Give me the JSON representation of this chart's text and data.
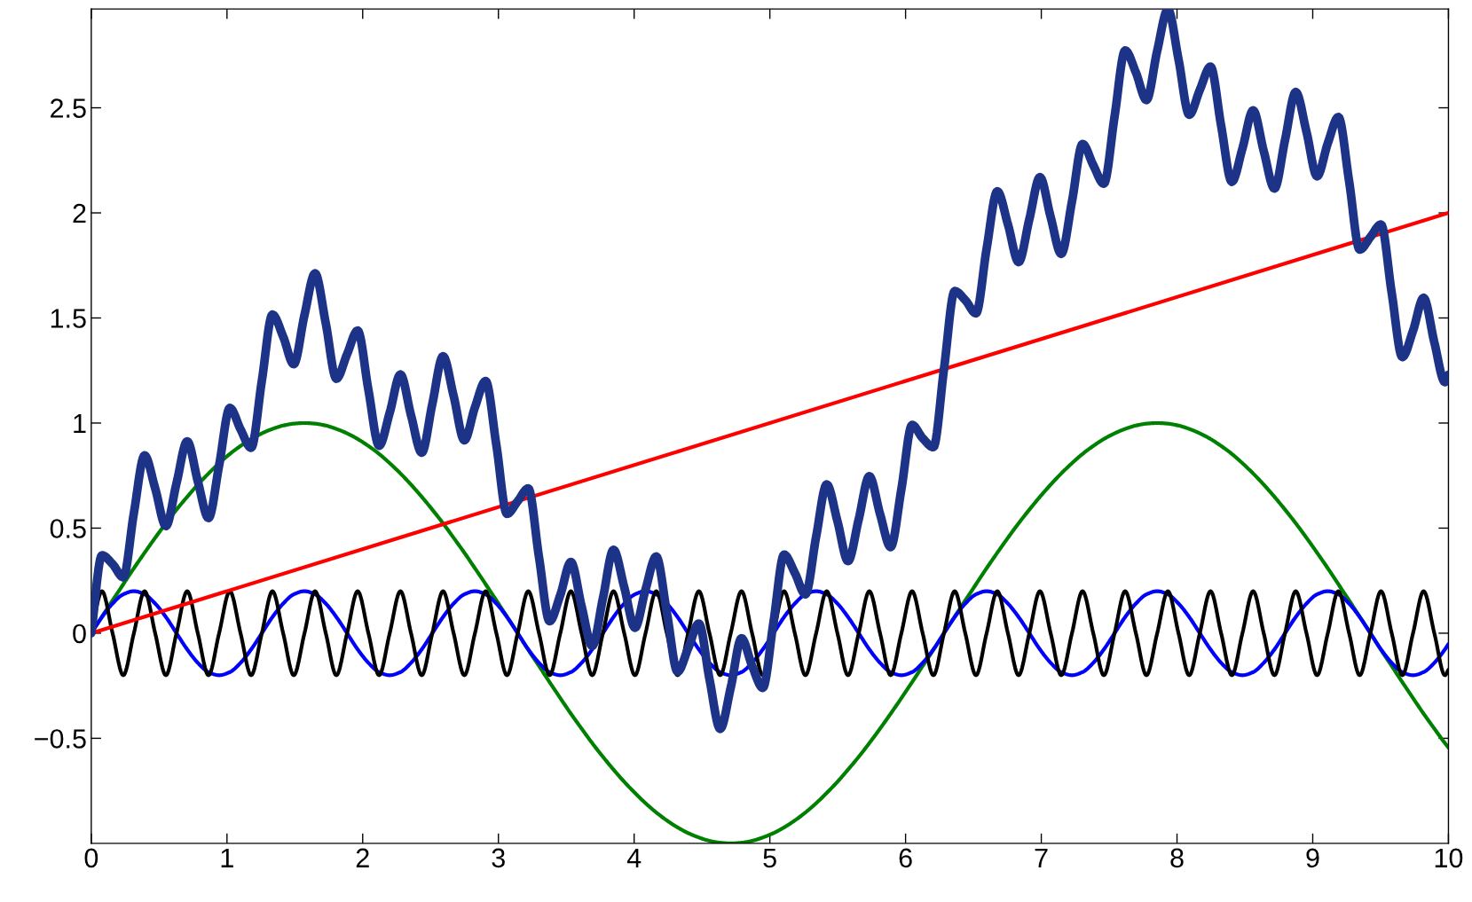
{
  "chart_data": {
    "type": "line",
    "x": [
      0,
      0.079,
      0.157,
      0.236,
      0.314,
      0.393,
      0.471,
      0.55,
      0.628,
      0.707,
      0.785,
      0.864,
      0.942,
      1.021,
      1.1,
      1.178,
      1.257,
      1.335,
      1.414,
      1.492,
      1.571,
      1.649,
      1.728,
      1.806,
      1.885,
      1.963,
      2.042,
      2.121,
      2.199,
      2.278,
      2.356,
      2.435,
      2.513,
      2.592,
      2.67,
      2.749,
      2.827,
      2.906,
      2.985,
      3.063,
      3.142,
      3.22,
      3.299,
      3.377,
      3.456,
      3.534,
      3.613,
      3.691,
      3.77,
      3.848,
      3.927,
      4.006,
      4.084,
      4.163,
      4.241,
      4.32,
      4.398,
      4.477,
      4.555,
      4.634,
      4.712,
      4.791,
      4.869,
      4.948,
      5.027,
      5.105,
      5.184,
      5.262,
      5.341,
      5.419,
      5.498,
      5.576,
      5.655,
      5.733,
      5.812,
      5.89,
      5.969,
      6.048,
      6.126,
      6.205,
      6.283,
      6.362,
      6.44,
      6.519,
      6.597,
      6.676,
      6.754,
      6.833,
      6.912,
      6.99,
      7.069,
      7.147,
      7.226,
      7.304,
      7.383,
      7.461,
      7.54,
      7.618,
      7.697,
      7.775,
      7.854,
      7.933,
      8.011,
      8.09,
      8.168,
      8.247,
      8.325,
      8.404,
      8.482,
      8.561,
      8.639,
      8.718,
      8.796,
      8.875,
      8.954,
      9.032,
      9.111,
      9.189,
      9.268,
      9.346,
      9.425,
      9.503,
      9.582,
      9.66,
      9.739,
      9.817,
      9.896,
      9.974,
      10
    ],
    "series": [
      {
        "color": "#008000",
        "values": [
          0,
          0.079,
          0.156,
          0.233,
          0.309,
          0.383,
          0.454,
          0.523,
          0.588,
          0.649,
          0.707,
          0.76,
          0.809,
          0.853,
          0.891,
          0.924,
          0.951,
          0.972,
          0.988,
          0.997,
          1,
          0.997,
          0.988,
          0.972,
          0.951,
          0.924,
          0.891,
          0.853,
          0.809,
          0.76,
          0.707,
          0.649,
          0.588,
          0.523,
          0.454,
          0.383,
          0.309,
          0.233,
          0.156,
          0.079,
          0,
          -0.079,
          -0.156,
          -0.233,
          -0.309,
          -0.383,
          -0.454,
          -0.523,
          -0.588,
          -0.649,
          -0.707,
          -0.76,
          -0.809,
          -0.853,
          -0.891,
          -0.924,
          -0.951,
          -0.972,
          -0.988,
          -0.997,
          -1,
          -0.997,
          -0.988,
          -0.972,
          -0.951,
          -0.924,
          -0.891,
          -0.853,
          -0.809,
          -0.76,
          -0.707,
          -0.649,
          -0.588,
          -0.523,
          -0.454,
          -0.383,
          -0.309,
          -0.233,
          -0.156,
          -0.079,
          0,
          0.079,
          0.156,
          0.233,
          0.309,
          0.383,
          0.454,
          0.523,
          0.588,
          0.649,
          0.707,
          0.76,
          0.809,
          0.853,
          0.891,
          0.924,
          0.951,
          0.972,
          0.988,
          0.997,
          1,
          0.997,
          0.988,
          0.972,
          0.951,
          0.924,
          0.891,
          0.853,
          0.809,
          0.76,
          0.707,
          0.649,
          0.588,
          0.523,
          0.454,
          0.383,
          0.309,
          0.233,
          0.156,
          0.079,
          0,
          -0.079,
          -0.156,
          -0.233,
          -0.309,
          -0.383,
          -0.454,
          -0.523,
          -0.544
        ]
      },
      {
        "color": "#0000ff",
        "values": [
          0,
          0.077,
          0.141,
          0.185,
          0.2,
          0.185,
          0.141,
          0.077,
          0,
          -0.077,
          -0.141,
          -0.185,
          -0.2,
          -0.185,
          -0.141,
          -0.077,
          0,
          0.077,
          0.141,
          0.185,
          0.2,
          0.185,
          0.141,
          0.077,
          0,
          -0.077,
          -0.141,
          -0.185,
          -0.2,
          -0.185,
          -0.141,
          -0.077,
          0,
          0.077,
          0.141,
          0.185,
          0.2,
          0.185,
          0.141,
          0.077,
          0,
          -0.077,
          -0.141,
          -0.185,
          -0.2,
          -0.185,
          -0.141,
          -0.077,
          0,
          0.077,
          0.141,
          0.185,
          0.2,
          0.185,
          0.141,
          0.077,
          0,
          -0.077,
          -0.141,
          -0.185,
          -0.2,
          -0.185,
          -0.141,
          -0.077,
          0,
          0.077,
          0.141,
          0.185,
          0.2,
          0.185,
          0.141,
          0.077,
          0,
          -0.077,
          -0.141,
          -0.185,
          -0.2,
          -0.185,
          -0.141,
          -0.077,
          0,
          0.077,
          0.141,
          0.185,
          0.2,
          0.185,
          0.141,
          0.077,
          0,
          -0.077,
          -0.141,
          -0.185,
          -0.2,
          -0.185,
          -0.141,
          -0.077,
          0,
          0.077,
          0.141,
          0.185,
          0.2,
          0.185,
          0.141,
          0.077,
          0,
          -0.077,
          -0.141,
          -0.185,
          -0.2,
          -0.185,
          -0.141,
          -0.077,
          0,
          0.077,
          0.141,
          0.185,
          0.2,
          0.185,
          0.141,
          0.077,
          0,
          -0.077,
          -0.141,
          -0.185,
          -0.2,
          -0.185,
          -0.141,
          -0.077,
          -0.052
        ]
      },
      {
        "color": "#000000",
        "values": [
          0,
          0.2,
          0,
          -0.2,
          0,
          0.2,
          0,
          -0.2,
          0,
          0.2,
          0,
          -0.2,
          0,
          0.2,
          0,
          -0.2,
          0,
          0.2,
          0,
          -0.2,
          0,
          0.2,
          0,
          -0.2,
          0,
          0.2,
          0,
          -0.2,
          0,
          0.2,
          0,
          -0.2,
          0,
          0.2,
          0,
          -0.2,
          0,
          0.2,
          0,
          -0.2,
          0,
          0.2,
          0,
          -0.2,
          0,
          0.2,
          0,
          -0.2,
          0,
          0.2,
          0,
          -0.2,
          0,
          0.2,
          0,
          -0.2,
          0,
          0.2,
          0,
          -0.2,
          0,
          0.2,
          0,
          -0.2,
          0,
          0.2,
          0,
          -0.2,
          0,
          0.2,
          0,
          -0.2,
          0,
          0.2,
          0,
          -0.2,
          0,
          0.2,
          0,
          -0.2,
          0,
          0.2,
          0,
          -0.2,
          0,
          0.2,
          0,
          -0.2,
          0,
          0.2,
          0,
          -0.2,
          0,
          0.2,
          0,
          -0.2,
          0,
          0.2,
          0,
          -0.2,
          0,
          0.2,
          0,
          -0.2,
          0,
          0.2,
          0,
          -0.2,
          0,
          0.2,
          0,
          -0.2,
          0,
          0.2,
          0,
          -0.2,
          0,
          0.2,
          0,
          -0.2,
          0,
          0.2,
          0,
          -0.2,
          0,
          0.2,
          0,
          -0.2,
          -0.174
        ]
      },
      {
        "color": "#ff0000",
        "x": [
          0,
          10
        ],
        "values": [
          0,
          2
        ]
      },
      {
        "color": "#1c3387",
        "values": [
          0,
          0.371,
          0.329,
          0.266,
          0.572,
          0.846,
          0.689,
          0.51,
          0.713,
          0.913,
          0.723,
          0.548,
          0.798,
          1.072,
          0.97,
          0.882,
          1.202,
          1.516,
          1.411,
          1.28,
          1.514,
          1.712,
          1.474,
          1.211,
          1.328,
          1.44,
          1.158,
          0.892,
          1.049,
          1.231,
          1.037,
          0.859,
          1.091,
          1.318,
          1.129,
          0.918,
          1.075,
          1.2,
          0.894,
          0.568,
          0.628,
          0.689,
          0.362,
          0.057,
          0.182,
          0.339,
          0.128,
          -0.061,
          0.166,
          0.397,
          0.219,
          0.026,
          0.208,
          0.365,
          0.098,
          -0.183,
          -0.072,
          0.046,
          -0.218,
          -0.455,
          -0.258,
          -0.024,
          -0.155,
          -0.26,
          0.054,
          0.374,
          0.287,
          0.185,
          0.459,
          0.708,
          0.533,
          0.343,
          0.543,
          0.747,
          0.567,
          0.41,
          0.685,
          0.991,
          0.928,
          0.885,
          1.257,
          1.628,
          1.585,
          1.522,
          1.829,
          2.103,
          1.946,
          1.766,
          1.97,
          2.17,
          1.98,
          1.805,
          2.054,
          2.328,
          2.227,
          2.139,
          2.459,
          2.773,
          2.668,
          2.537,
          2.771,
          2.968,
          2.731,
          2.467,
          2.585,
          2.696,
          2.415,
          2.148,
          2.306,
          2.488,
          2.294,
          2.116,
          2.347,
          2.575,
          2.386,
          2.174,
          2.331,
          2.456,
          2.151,
          1.825,
          1.885,
          1.945,
          1.619,
          1.314,
          1.439,
          1.596,
          1.384,
          1.195,
          1.23
        ]
      }
    ],
    "xlim": [
      0,
      10
    ],
    "xticks": [
      0,
      1,
      2,
      3,
      4,
      5,
      6,
      7,
      8,
      9,
      10
    ],
    "ylim": [
      -1,
      2.97
    ],
    "yticks": [
      {
        "value": -0.5,
        "label": "−0.5"
      },
      0,
      0.5,
      1,
      1.5,
      2,
      2.5
    ],
    "grid": false,
    "legend": false,
    "line_style": "solid",
    "marker": "none"
  }
}
